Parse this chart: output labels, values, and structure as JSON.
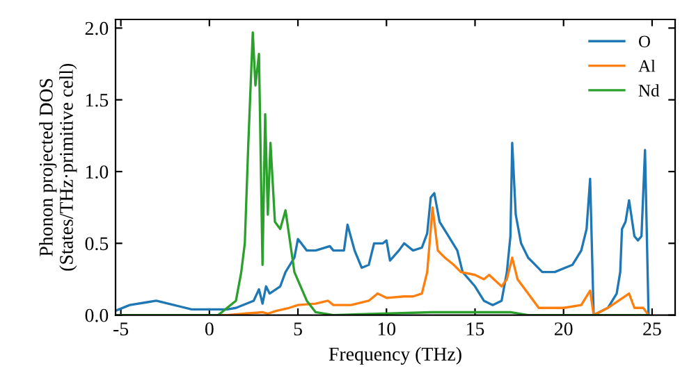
{
  "chart_data": {
    "type": "line",
    "xlabel": "Frequency (THz)",
    "ylabel": "Phonon projected DOS\n(States/THz·primitive cell)",
    "xlim": [
      -5.3,
      26.3
    ],
    "ylim": [
      0,
      2.06
    ],
    "xticks": [
      -5,
      0,
      5,
      10,
      15,
      20,
      25
    ],
    "yticks": [
      {
        "value": 0,
        "label": "0.0"
      },
      {
        "value": 0.5,
        "label": "0.5"
      },
      {
        "value": 1,
        "label": "1.0"
      },
      {
        "value": 1.5,
        "label": "1.5"
      },
      {
        "value": 2,
        "label": "2.0"
      }
    ],
    "grid": false,
    "legend": "top right",
    "marker": "none",
    "line_style": "solid",
    "series": [
      {
        "name": "O",
        "color": "#1f77b4",
        "x": [
          -5.3,
          -4.5,
          -3.5,
          -3,
          -2,
          -1,
          0,
          1,
          1.5,
          2.5,
          2.8,
          3.0,
          3.2,
          3.4,
          4,
          4.3,
          4.8,
          5.0,
          5.5,
          6,
          6.8,
          7,
          7.6,
          7.8,
          8.2,
          8.6,
          9,
          9.3,
          9.8,
          10,
          10.2,
          10.7,
          11,
          11.5,
          12,
          12.3,
          12.5,
          12.7,
          13,
          13.5,
          14,
          14.3,
          15,
          15.5,
          16,
          16.5,
          16.8,
          17,
          17.1,
          17.3,
          17.6,
          18,
          18.8,
          19.5,
          20.5,
          21,
          21.3,
          21.5,
          21.7,
          22.5,
          23,
          23.2,
          23.3,
          23.5,
          23.7,
          24,
          24.2,
          24.4,
          24.6,
          24.8
        ],
        "values": [
          0.03,
          0.07,
          0.09,
          0.1,
          0.07,
          0.04,
          0.04,
          0.04,
          0.05,
          0.1,
          0.18,
          0.08,
          0.2,
          0.15,
          0.2,
          0.3,
          0.4,
          0.53,
          0.45,
          0.45,
          0.48,
          0.45,
          0.45,
          0.63,
          0.45,
          0.33,
          0.35,
          0.5,
          0.5,
          0.52,
          0.38,
          0.45,
          0.5,
          0.45,
          0.47,
          0.57,
          0.82,
          0.85,
          0.65,
          0.55,
          0.45,
          0.3,
          0.2,
          0.1,
          0.07,
          0.1,
          0.3,
          0.55,
          1.2,
          0.7,
          0.5,
          0.4,
          0.3,
          0.3,
          0.35,
          0.45,
          0.6,
          0.95,
          0.0,
          0.05,
          0.15,
          0.3,
          0.6,
          0.65,
          0.8,
          0.55,
          0.52,
          0.55,
          1.15,
          0.0
        ]
      },
      {
        "name": "Al",
        "color": "#ff7f0e",
        "x": [
          -5.3,
          1,
          2,
          3,
          3.3,
          3.8,
          4.5,
          5,
          6,
          6.7,
          7,
          8,
          9,
          9.5,
          10,
          11,
          11.5,
          12,
          12.3,
          12.6,
          12.9,
          13.3,
          13.8,
          14.2,
          15,
          15.5,
          15.8,
          16.5,
          16.8,
          17.1,
          17.4,
          18,
          18.6,
          20,
          21,
          21.5,
          21.7,
          22.5,
          23.7,
          24,
          24.5,
          24.8
        ],
        "values": [
          0,
          0,
          0.01,
          0.02,
          0.01,
          0.03,
          0.05,
          0.07,
          0.08,
          0.1,
          0.07,
          0.07,
          0.1,
          0.15,
          0.12,
          0.13,
          0.13,
          0.15,
          0.3,
          0.75,
          0.45,
          0.4,
          0.35,
          0.3,
          0.28,
          0.25,
          0.28,
          0.2,
          0.25,
          0.4,
          0.25,
          0.15,
          0.05,
          0.05,
          0.07,
          0.17,
          0,
          0.05,
          0.15,
          0.05,
          0.05,
          0
        ]
      },
      {
        "name": "Nd",
        "color": "#2ca02c",
        "x": [
          -5.3,
          0.5,
          1,
          1.5,
          1.8,
          2,
          2.2,
          2.45,
          2.6,
          2.8,
          3.0,
          3.15,
          3.3,
          3.45,
          3.7,
          4.0,
          4.3,
          4.8,
          5.5,
          6,
          7,
          12.5,
          17,
          18,
          24.8
        ],
        "values": [
          0,
          0,
          0.05,
          0.1,
          0.3,
          0.5,
          1.2,
          1.97,
          1.6,
          1.82,
          0.35,
          1.4,
          0.7,
          1.2,
          0.65,
          0.6,
          0.73,
          0.3,
          0.1,
          0.02,
          0,
          0.02,
          0.02,
          0,
          0
        ]
      }
    ]
  }
}
